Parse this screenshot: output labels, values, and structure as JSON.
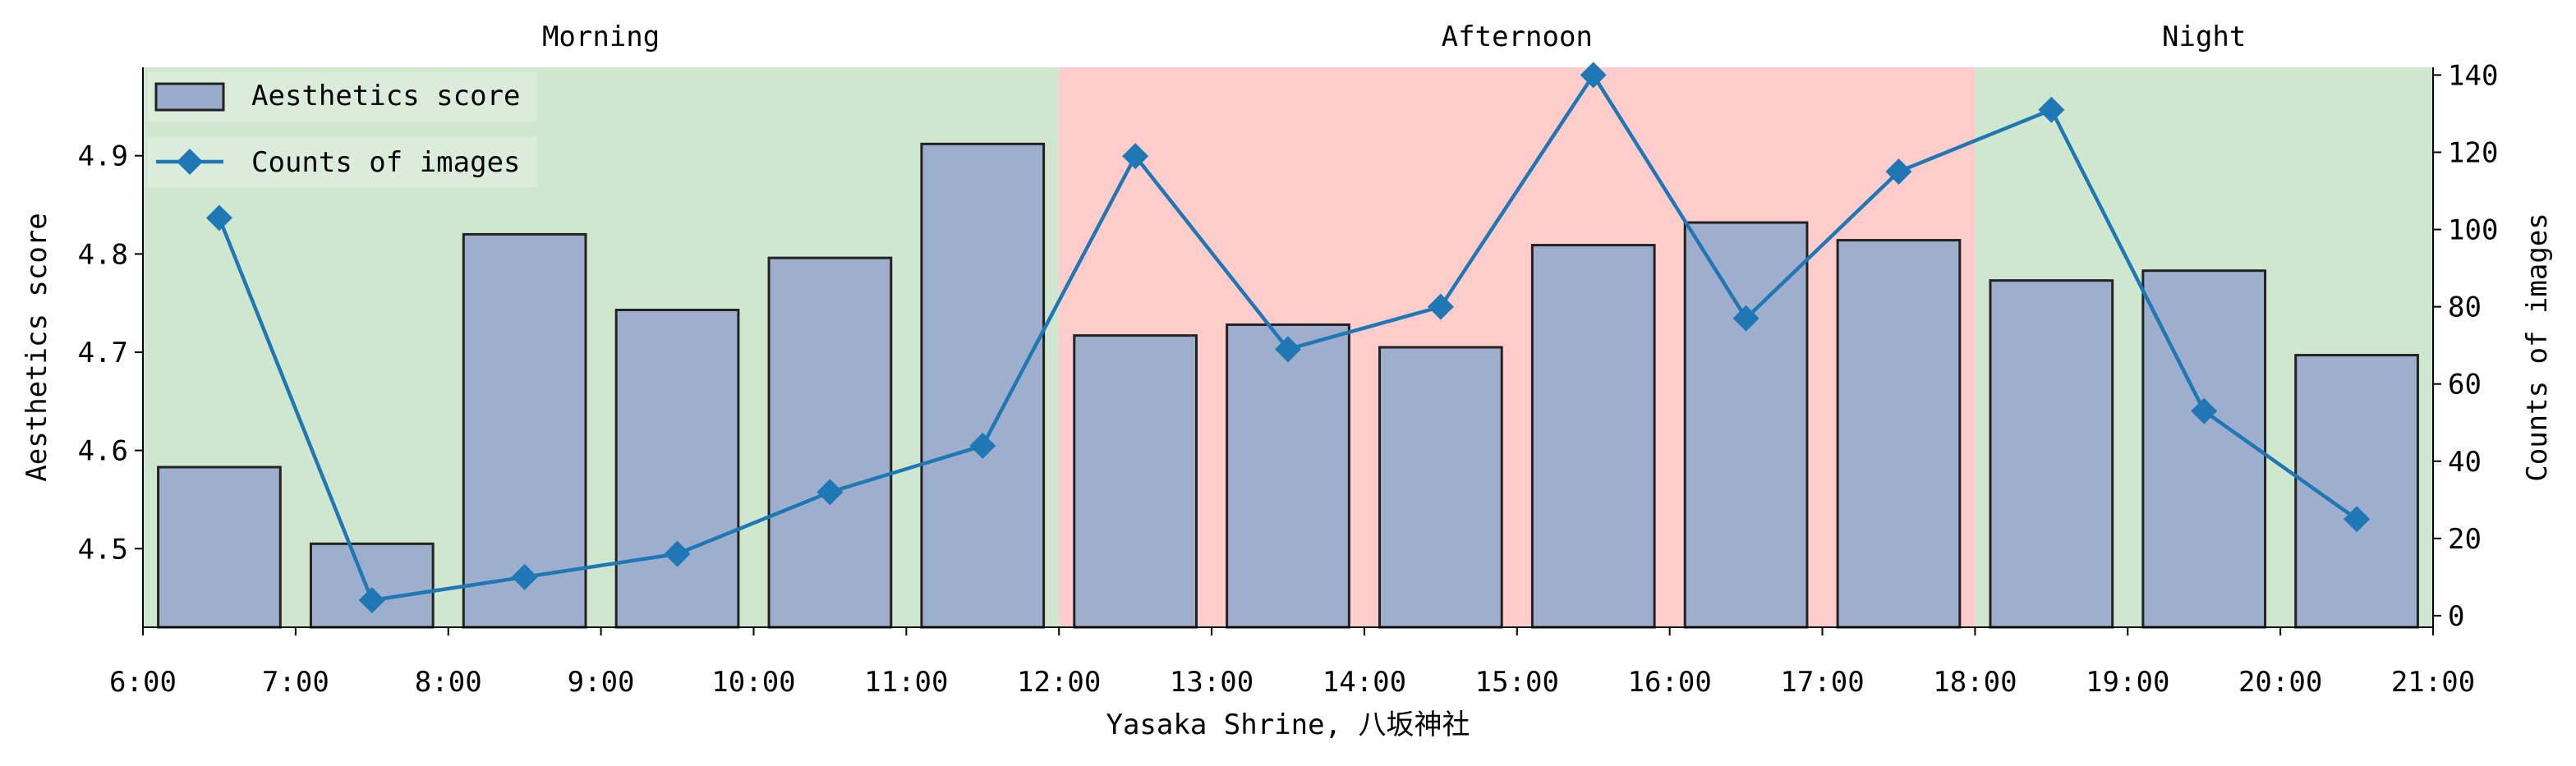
{
  "chart_data": {
    "type": "bar+line",
    "xlabel": "Yasaka Shrine, 八坂神社",
    "ylabel_left": "Aesthetics score",
    "ylabel_right": "Counts of images",
    "x_ticks": [
      "6:00",
      "7:00",
      "8:00",
      "9:00",
      "10:00",
      "11:00",
      "12:00",
      "13:00",
      "14:00",
      "15:00",
      "16:00",
      "17:00",
      "18:00",
      "19:00",
      "20:00",
      "21:00"
    ],
    "x_range": [
      6,
      21
    ],
    "ylim_left": [
      4.42,
      4.99
    ],
    "ylim_right": [
      -3,
      142
    ],
    "y_ticks_left": [
      4.5,
      4.6,
      4.7,
      4.8,
      4.9
    ],
    "y_ticks_left_labels": [
      "4.5",
      "4.6",
      "4.7",
      "4.8",
      "4.9"
    ],
    "y_ticks_right": [
      0,
      20,
      40,
      60,
      80,
      100,
      120,
      140
    ],
    "y_ticks_right_labels": [
      "0",
      "20",
      "40",
      "60",
      "80",
      "100",
      "120",
      "140"
    ],
    "periods": [
      {
        "label": "Morning",
        "start": 6,
        "end": 12,
        "color": "#cfe6cf"
      },
      {
        "label": "Afternoon",
        "start": 12,
        "end": 18,
        "color": "#ffcccc"
      },
      {
        "label": "Night",
        "start": 18,
        "end": 21,
        "color": "#cfe6cf"
      }
    ],
    "bars": {
      "name": "Aesthetics score",
      "x": [
        6.5,
        7.5,
        8.5,
        9.5,
        10.5,
        11.5,
        12.5,
        13.5,
        14.5,
        15.5,
        16.5,
        17.5,
        18.5,
        19.5,
        20.5
      ],
      "values": [
        4.583,
        4.505,
        4.82,
        4.743,
        4.796,
        4.912,
        4.717,
        4.728,
        4.705,
        4.809,
        4.832,
        4.814,
        4.773,
        4.783,
        4.697
      ],
      "color": "#9aaccc",
      "edge_color": "#222222"
    },
    "line": {
      "name": "Counts of images",
      "x": [
        6.5,
        7.5,
        8.5,
        9.5,
        10.5,
        11.5,
        12.5,
        13.5,
        14.5,
        15.5,
        16.5,
        17.5,
        18.5,
        19.5,
        20.5
      ],
      "values": [
        103,
        4,
        10,
        16,
        32,
        44,
        119,
        69,
        80,
        140,
        77,
        115,
        131,
        53,
        25
      ],
      "color": "#1f77b4",
      "marker": "diamond"
    },
    "legend_position": "top-left"
  }
}
